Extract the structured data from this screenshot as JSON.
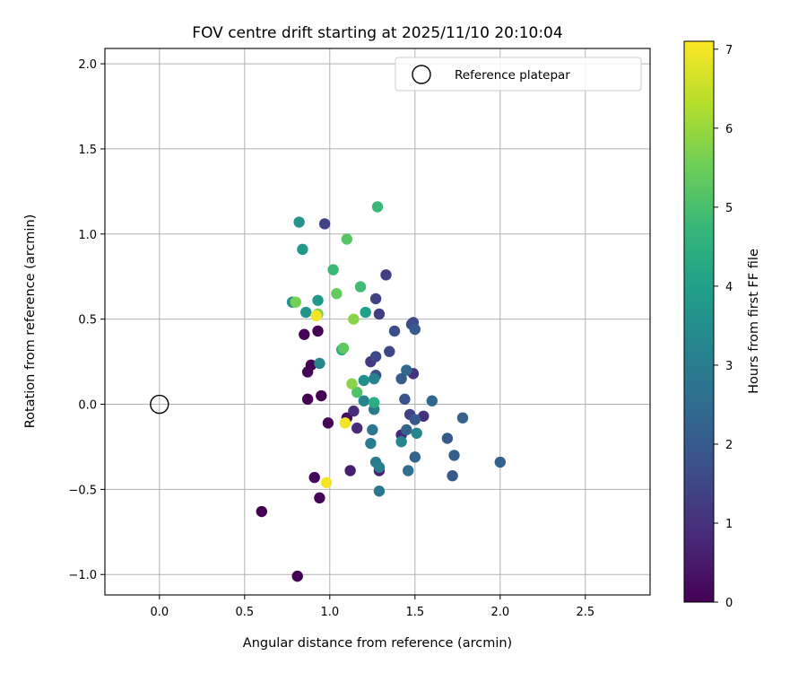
{
  "chart_data": {
    "type": "scatter",
    "title": "FOV centre drift starting at 2025/11/10 20:10:04",
    "xlabel": "Angular distance from reference (arcmin)",
    "ylabel": "Rotation from reference (arcmin)",
    "xlim": [
      -0.32,
      2.88
    ],
    "ylim": [
      -1.12,
      2.09
    ],
    "xticks": [
      0.0,
      0.5,
      1.0,
      1.5,
      2.0,
      2.5
    ],
    "xtick_labels": [
      "0.0",
      "0.5",
      "1.0",
      "1.5",
      "2.0",
      "2.5"
    ],
    "yticks": [
      -1.0,
      -0.5,
      0.0,
      0.5,
      1.0,
      1.5,
      2.0
    ],
    "ytick_labels": [
      "−1.0",
      "−0.5",
      "0.0",
      "0.5",
      "1.0",
      "1.5",
      "2.0"
    ],
    "grid": true,
    "colormap": "viridis",
    "colorbar": {
      "label": "Hours from first FF file",
      "range": [
        0,
        7.1
      ],
      "ticks": [
        0,
        1,
        2,
        3,
        4,
        5,
        6,
        7
      ],
      "tick_labels": [
        "0",
        "1",
        "2",
        "3",
        "4",
        "5",
        "6",
        "7"
      ]
    },
    "reference": {
      "x": 0.0,
      "y": 0.0,
      "label": "Reference platepar",
      "color": "#000000"
    },
    "legend": {
      "position": "top-right",
      "entries": [
        "Reference platepar"
      ]
    },
    "points": [
      {
        "x": 0.6,
        "y": -0.63,
        "h": 0.0
      },
      {
        "x": 0.81,
        "y": -1.01,
        "h": 0.0
      },
      {
        "x": 0.87,
        "y": 0.03,
        "h": 0.0
      },
      {
        "x": 0.87,
        "y": 0.19,
        "h": 0.1
      },
      {
        "x": 0.89,
        "y": 0.23,
        "h": 0.0
      },
      {
        "x": 0.85,
        "y": 0.41,
        "h": 0.1
      },
      {
        "x": 0.93,
        "y": 0.43,
        "h": 0.0
      },
      {
        "x": 0.95,
        "y": 0.05,
        "h": 0.0
      },
      {
        "x": 0.99,
        "y": -0.11,
        "h": 0.1
      },
      {
        "x": 0.91,
        "y": -0.43,
        "h": 0.1
      },
      {
        "x": 0.94,
        "y": -0.55,
        "h": 0.1
      },
      {
        "x": 1.1,
        "y": -0.08,
        "h": 0.3
      },
      {
        "x": 1.12,
        "y": -0.39,
        "h": 0.6
      },
      {
        "x": 1.14,
        "y": -0.04,
        "h": 0.9
      },
      {
        "x": 1.16,
        "y": -0.14,
        "h": 0.9
      },
      {
        "x": 1.29,
        "y": -0.39,
        "h": 0.6
      },
      {
        "x": 1.42,
        "y": -0.18,
        "h": 0.8
      },
      {
        "x": 1.49,
        "y": 0.18,
        "h": 1.0
      },
      {
        "x": 1.55,
        "y": -0.07,
        "h": 1.0
      },
      {
        "x": 1.47,
        "y": -0.06,
        "h": 1.4
      },
      {
        "x": 1.33,
        "y": 0.76,
        "h": 1.3
      },
      {
        "x": 1.29,
        "y": 0.53,
        "h": 1.3
      },
      {
        "x": 1.35,
        "y": 0.31,
        "h": 1.5
      },
      {
        "x": 1.27,
        "y": 0.62,
        "h": 1.4
      },
      {
        "x": 1.24,
        "y": 0.25,
        "h": 1.2
      },
      {
        "x": 1.27,
        "y": 0.28,
        "h": 1.5
      },
      {
        "x": 1.27,
        "y": 0.17,
        "h": 1.7
      },
      {
        "x": 0.97,
        "y": 1.06,
        "h": 1.4
      },
      {
        "x": 1.38,
        "y": 0.43,
        "h": 1.7
      },
      {
        "x": 1.48,
        "y": 0.47,
        "h": 1.6
      },
      {
        "x": 1.49,
        "y": 0.48,
        "h": 1.6
      },
      {
        "x": 1.5,
        "y": 0.44,
        "h": 2.0
      },
      {
        "x": 1.42,
        "y": 0.15,
        "h": 2.0
      },
      {
        "x": 1.45,
        "y": 0.2,
        "h": 2.4
      },
      {
        "x": 1.44,
        "y": 0.03,
        "h": 1.8
      },
      {
        "x": 1.45,
        "y": -0.15,
        "h": 2.3
      },
      {
        "x": 1.5,
        "y": -0.09,
        "h": 2.0
      },
      {
        "x": 1.69,
        "y": -0.2,
        "h": 2.0
      },
      {
        "x": 1.73,
        "y": -0.3,
        "h": 2.1
      },
      {
        "x": 1.72,
        "y": -0.42,
        "h": 2.0
      },
      {
        "x": 1.6,
        "y": 0.02,
        "h": 2.4
      },
      {
        "x": 1.78,
        "y": -0.08,
        "h": 2.2
      },
      {
        "x": 2.0,
        "y": -0.34,
        "h": 2.2
      },
      {
        "x": 1.5,
        "y": -0.31,
        "h": 2.3
      },
      {
        "x": 1.46,
        "y": -0.39,
        "h": 2.6
      },
      {
        "x": 1.29,
        "y": -0.51,
        "h": 2.8
      },
      {
        "x": 1.27,
        "y": -0.34,
        "h": 2.9
      },
      {
        "x": 1.29,
        "y": -0.37,
        "h": 3.0
      },
      {
        "x": 1.25,
        "y": -0.15,
        "h": 2.8
      },
      {
        "x": 1.24,
        "y": -0.23,
        "h": 3.0
      },
      {
        "x": 1.26,
        "y": -0.03,
        "h": 2.9
      },
      {
        "x": 1.26,
        "y": 0.15,
        "h": 3.1
      },
      {
        "x": 1.51,
        "y": -0.17,
        "h": 3.3
      },
      {
        "x": 1.42,
        "y": -0.22,
        "h": 3.3
      },
      {
        "x": 1.2,
        "y": 0.02,
        "h": 3.2
      },
      {
        "x": 1.2,
        "y": 0.14,
        "h": 3.5
      },
      {
        "x": 0.94,
        "y": 0.24,
        "h": 3.3
      },
      {
        "x": 0.82,
        "y": 1.07,
        "h": 3.6
      },
      {
        "x": 0.84,
        "y": 0.91,
        "h": 3.8
      },
      {
        "x": 0.86,
        "y": 0.54,
        "h": 3.7
      },
      {
        "x": 0.93,
        "y": 0.61,
        "h": 3.8
      },
      {
        "x": 0.78,
        "y": 0.6,
        "h": 3.7
      },
      {
        "x": 1.21,
        "y": 0.54,
        "h": 4.0
      },
      {
        "x": 1.26,
        "y": 0.01,
        "h": 4.4
      },
      {
        "x": 1.07,
        "y": 0.32,
        "h": 4.4
      },
      {
        "x": 1.18,
        "y": 0.69,
        "h": 4.9
      },
      {
        "x": 1.02,
        "y": 0.79,
        "h": 4.8
      },
      {
        "x": 1.28,
        "y": 1.16,
        "h": 4.8
      },
      {
        "x": 1.16,
        "y": 0.07,
        "h": 5.1
      },
      {
        "x": 1.08,
        "y": 0.33,
        "h": 5.3
      },
      {
        "x": 1.04,
        "y": 0.65,
        "h": 5.4
      },
      {
        "x": 1.1,
        "y": 0.97,
        "h": 5.2
      },
      {
        "x": 0.8,
        "y": 0.6,
        "h": 5.6
      },
      {
        "x": 0.93,
        "y": 0.53,
        "h": 5.6
      },
      {
        "x": 1.14,
        "y": 0.5,
        "h": 5.8
      },
      {
        "x": 1.13,
        "y": 0.12,
        "h": 5.8
      },
      {
        "x": 0.92,
        "y": 0.52,
        "h": 7.0
      },
      {
        "x": 1.09,
        "y": -0.11,
        "h": 7.0
      },
      {
        "x": 0.98,
        "y": -0.46,
        "h": 7.0
      }
    ]
  }
}
